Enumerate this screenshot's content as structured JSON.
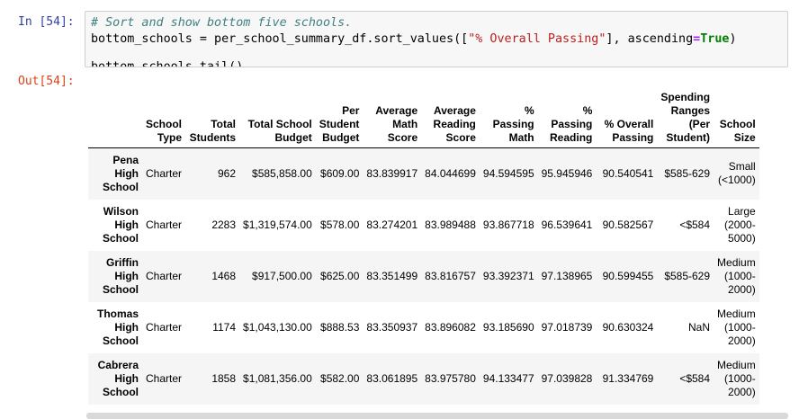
{
  "cell": {
    "in_prompt": "In [54]:",
    "out_prompt": "Out[54]:",
    "code": {
      "comment": "# Sort and show bottom five schools.",
      "line2_a": "bottom_schools = per_school_summary_df.sort_values([",
      "line2_str": "\"% Overall Passing\"",
      "line2_b": "], ascending",
      "line2_eq": "=",
      "line2_kw": "True",
      "line2_c": ")",
      "line3": "bottom_schools.tail()"
    }
  },
  "table": {
    "columns": [
      "School Type",
      "Total Students",
      "Total School Budget",
      "Per Student Budget",
      "Average Math Score",
      "Average Reading Score",
      "% Passing Math",
      "% Passing Reading",
      "% Overall Passing",
      "Spending Ranges (Per Student)",
      "School Size"
    ],
    "rows": [
      {
        "index": "Pena High School",
        "cells": [
          "Charter",
          "962",
          "$585,858.00",
          "$609.00",
          "83.839917",
          "84.044699",
          "94.594595",
          "95.945946",
          "90.540541",
          "$585-629",
          "Small (<1000)"
        ]
      },
      {
        "index": "Wilson High School",
        "cells": [
          "Charter",
          "2283",
          "$1,319,574.00",
          "$578.00",
          "83.274201",
          "83.989488",
          "93.867718",
          "96.539641",
          "90.582567",
          "<$584",
          "Large (2000-5000)"
        ]
      },
      {
        "index": "Griffin High School",
        "cells": [
          "Charter",
          "1468",
          "$917,500.00",
          "$625.00",
          "83.351499",
          "83.816757",
          "93.392371",
          "97.138965",
          "90.599455",
          "$585-629",
          "Medium (1000-2000)"
        ]
      },
      {
        "index": "Thomas High School",
        "cells": [
          "Charter",
          "1174",
          "$1,043,130.00",
          "$888.53",
          "83.350937",
          "83.896082",
          "93.185690",
          "97.018739",
          "90.630324",
          "NaN",
          "Medium (1000-2000)"
        ]
      },
      {
        "index": "Cabrera High School",
        "cells": [
          "Charter",
          "1858",
          "$1,081,356.00",
          "$582.00",
          "83.061895",
          "83.975780",
          "94.133477",
          "97.039828",
          "91.334769",
          "<$584",
          "Medium (1000-2000)"
        ]
      }
    ]
  }
}
